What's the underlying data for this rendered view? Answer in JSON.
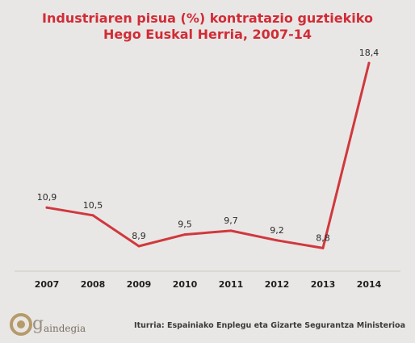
{
  "chart_data": {
    "type": "line",
    "title": "Industriaren pisua (%) kontratazio guztiekiko",
    "subtitle": "Hego Euskal Herria, 2007-14",
    "categories": [
      "2007",
      "2008",
      "2009",
      "2010",
      "2011",
      "2012",
      "2013",
      "2014"
    ],
    "values": [
      10.9,
      10.5,
      8.9,
      9.5,
      9.7,
      9.2,
      8.8,
      18.4
    ],
    "data_labels": [
      "10,9",
      "10,5",
      "8,9",
      "9,5",
      "9,7",
      "9,2",
      "8,8",
      "18,4"
    ],
    "xlabel": "",
    "ylabel": "",
    "ylim": [
      7.6,
      18.7
    ],
    "grid": false,
    "legend": "none",
    "line_color": "#d0383e",
    "axis_color": "#cfcac4"
  },
  "footer": {
    "source": "Iturria: Espainiako Enplegu eta Gizarte Segurantza Ministerioa",
    "logo_text": "aindegia"
  },
  "colors": {
    "background": "#e9e7e5",
    "title": "#d12c36",
    "logo": "#b59a6a"
  }
}
